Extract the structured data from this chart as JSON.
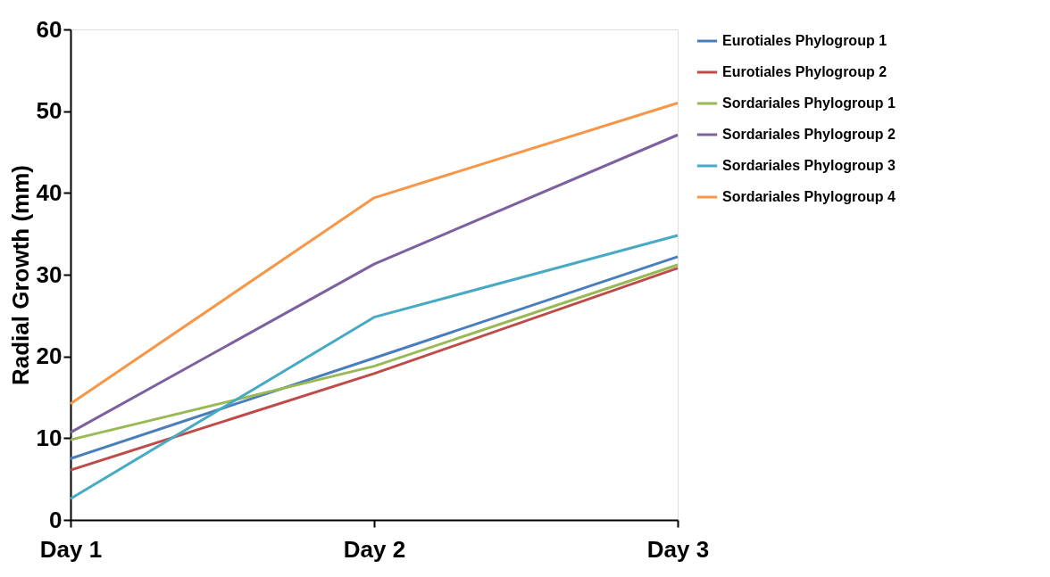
{
  "chart_data": {
    "type": "line",
    "ylabel": "Radial Growth (mm)",
    "categories": [
      "Day 1",
      "Day 2",
      "Day 3"
    ],
    "series": [
      {
        "name": "Eurotiales Phylogroup 1",
        "color": "#4a7ebb",
        "values": [
          7.5,
          19.8,
          32.2
        ]
      },
      {
        "name": "Eurotiales Phylogroup 2",
        "color": "#be4b48",
        "values": [
          6.1,
          17.9,
          30.8
        ]
      },
      {
        "name": "Sordariales Phylogroup 1",
        "color": "#98b954",
        "values": [
          9.8,
          18.8,
          31.2
        ]
      },
      {
        "name": "Sordariales Phylogroup 2",
        "color": "#7d60a0",
        "values": [
          10.7,
          31.3,
          47.1
        ]
      },
      {
        "name": "Sordariales Phylogroup 3",
        "color": "#46aac5",
        "values": [
          2.6,
          24.8,
          34.8
        ]
      },
      {
        "name": "Sordariales Phylogroup 4",
        "color": "#f79646",
        "values": [
          14.2,
          39.4,
          51.0
        ]
      }
    ],
    "ylim": [
      0,
      60
    ],
    "yticks": [
      0,
      10,
      20,
      30,
      40,
      50,
      60
    ],
    "grid": false,
    "legend": "right",
    "marker": "none",
    "line_style": "solid"
  }
}
